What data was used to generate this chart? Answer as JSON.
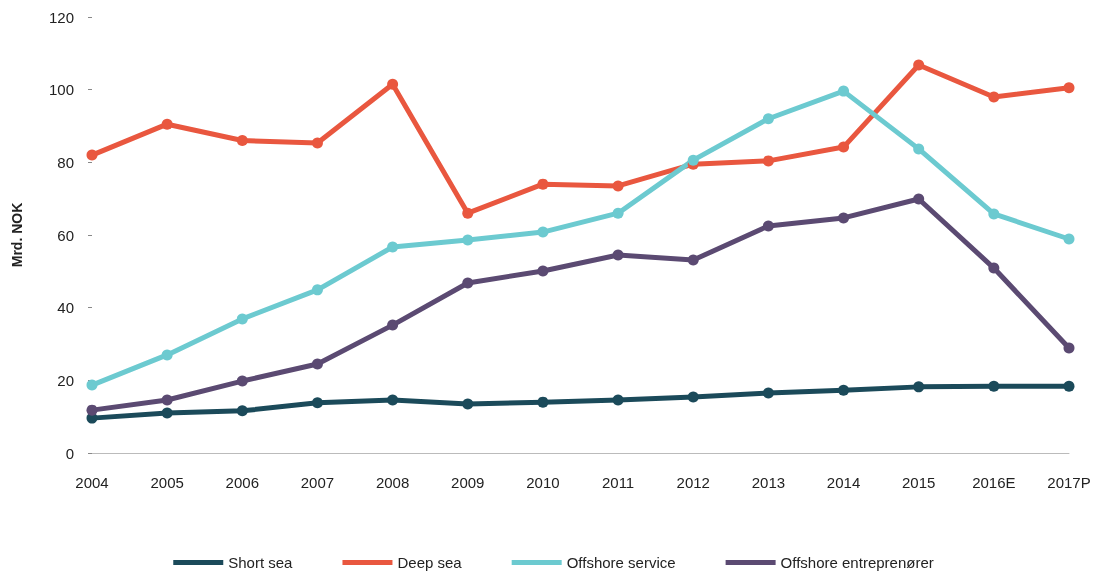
{
  "chart_data": {
    "type": "line",
    "ylabel": "Mrd. NOK",
    "categories": [
      "2004",
      "2005",
      "2006",
      "2007",
      "2008",
      "2009",
      "2010",
      "2011",
      "2012",
      "2013",
      "2014",
      "2015",
      "2016E",
      "2017P"
    ],
    "series": [
      {
        "name": "Short sea",
        "color": "#1b4a5a",
        "values": [
          9.6,
          11,
          11.6,
          13.8,
          14.6,
          13.5,
          14,
          14.6,
          15.4,
          16.5,
          17.3,
          18.2,
          18.4,
          18.4
        ]
      },
      {
        "name": "Deep sea",
        "color": "#e9573f",
        "values": [
          82,
          90.5,
          86,
          85.3,
          101.5,
          66,
          74,
          73.5,
          79.5,
          80.4,
          84.2,
          106.8,
          98,
          100.5
        ]
      },
      {
        "name": "Offshore service",
        "color": "#6ccad0",
        "values": [
          18.7,
          27,
          36.9,
          44.9,
          56.7,
          58.6,
          60.8,
          66,
          80.6,
          92,
          99.6,
          83.7,
          65.8,
          58.9
        ]
      },
      {
        "name": "Offshore entreprenører",
        "color": "#5b4a72",
        "values": [
          11.8,
          14.6,
          19.8,
          24.5,
          35.2,
          46.8,
          50.1,
          54.5,
          53.1,
          62.5,
          64.7,
          69.9,
          50.9,
          28.9
        ]
      }
    ],
    "ylim": [
      0,
      120
    ],
    "yticks": [
      0,
      20,
      40,
      60,
      80,
      100,
      120
    ],
    "grid": false,
    "legend": "bottom",
    "marker": "circle",
    "line_style": "solid"
  }
}
